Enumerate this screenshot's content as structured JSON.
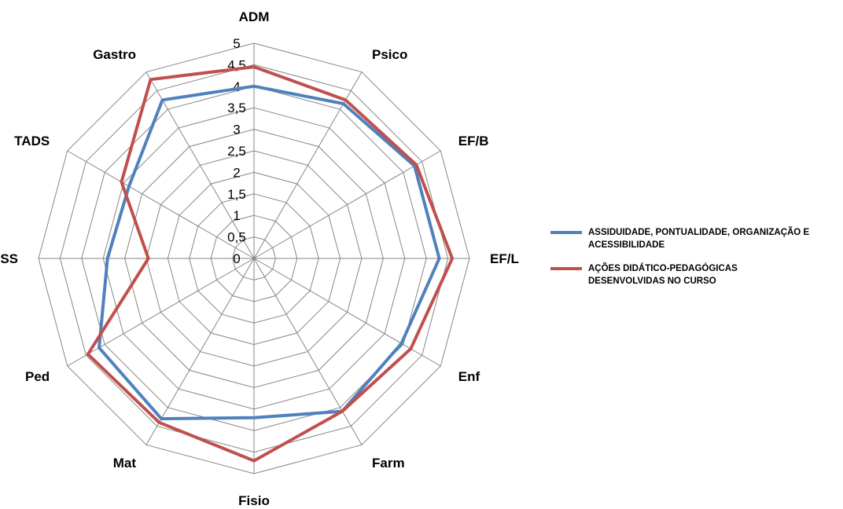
{
  "chart_data": {
    "type": "radar",
    "categories": [
      "ADM",
      "Psico",
      "EF/B",
      "EF/L",
      "Enf",
      "Farm",
      "Fisio",
      "Mat",
      "Ped",
      "SS",
      "TADS",
      "Gastro"
    ],
    "tick_labels": [
      "0",
      "0,5",
      "1",
      "1,5",
      "2",
      "2,5",
      "3",
      "3,5",
      "4",
      "4,5",
      "5"
    ],
    "rlim": [
      0,
      5
    ],
    "series": [
      {
        "name": "ASSIDUIDADE, PONTUALIDADE, ORGANIZAÇÃO E ACESSIBILIDADE",
        "color": "#4F81BD",
        "values": [
          4.0,
          4.15,
          4.3,
          4.3,
          3.95,
          4.1,
          3.7,
          4.3,
          4.15,
          3.4,
          3.35,
          4.25
        ]
      },
      {
        "name": "AÇÕES DIDÁTICO-PEDAGÓGICAS DESENVOLVIDAS NO CURSO",
        "color": "#C0504D",
        "values": [
          4.45,
          4.25,
          4.35,
          4.6,
          4.2,
          4.1,
          4.7,
          4.4,
          4.45,
          2.45,
          3.55,
          4.8
        ]
      }
    ],
    "grid": true,
    "legend_position": "right"
  },
  "legend": {
    "items": [
      {
        "label_line1": "ASSIDUIDADE, PONTUALIDADE, ORGANIZAÇÃO E",
        "label_line2": "ACESSIBILIDADE",
        "color": "#4F81BD"
      },
      {
        "label_line1": "AÇÕES DIDÁTICO-PEDAGÓGICAS",
        "label_line2": "DESENVOLVIDAS NO CURSO",
        "color": "#C0504D"
      }
    ]
  },
  "colors": {
    "grid": "#868686",
    "text": "#000000"
  }
}
